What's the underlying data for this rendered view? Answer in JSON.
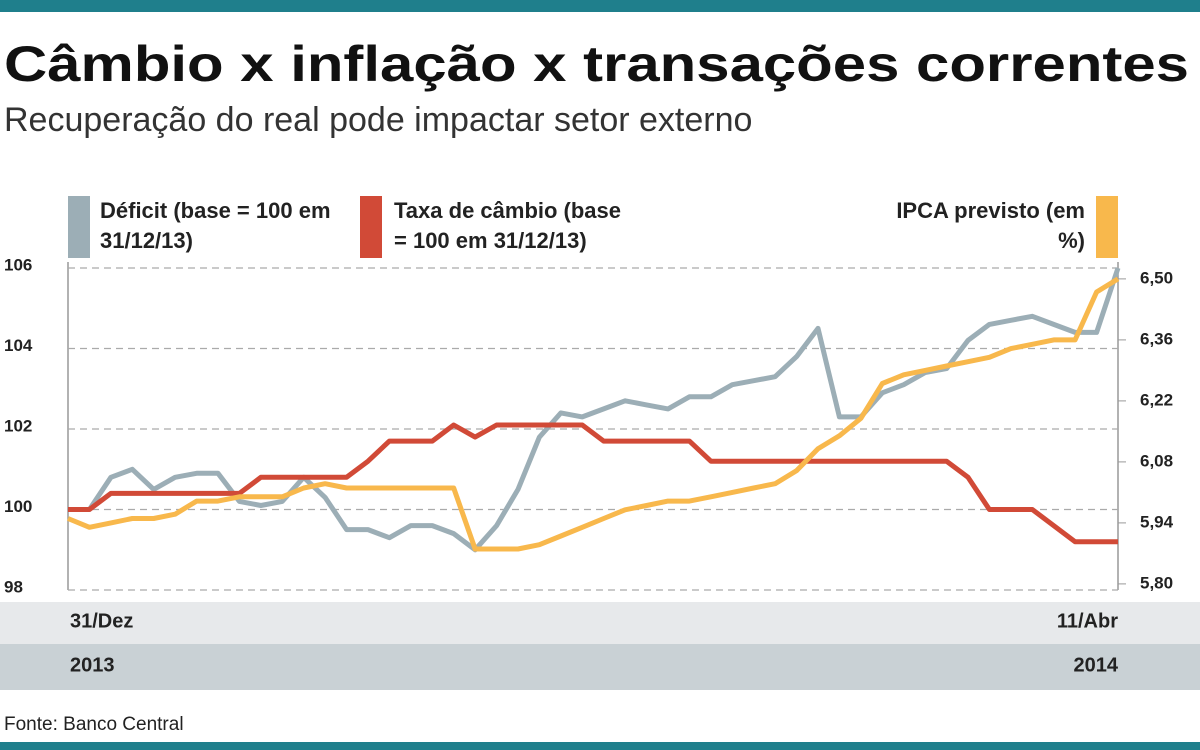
{
  "chart_data": {
    "type": "line",
    "title": "Câmbio x inflação x transações correntes",
    "subtitle": "Recuperação do real pode impactar setor externo",
    "source": "Fonte: Banco Central",
    "categories": [
      "31/Dez",
      null,
      null,
      null,
      null,
      null,
      null,
      null,
      null,
      null,
      null,
      null,
      null,
      null,
      null,
      null,
      null,
      null,
      null,
      null,
      null,
      null,
      null,
      null,
      null,
      null,
      null,
      null,
      null,
      null,
      null,
      null,
      null,
      null,
      null,
      null,
      null,
      null,
      null,
      null,
      null,
      null,
      null,
      null,
      null,
      null,
      null,
      null,
      null,
      "11/Abr"
    ],
    "x_sublabels": [
      "2013",
      "2014"
    ],
    "ylim": [
      98,
      106
    ],
    "yticks": [
      98,
      100,
      102,
      104,
      106
    ],
    "y2lim": [
      5.786,
      6.525
    ],
    "y2ticks": [
      {
        "value": 5.8,
        "label": "5,80"
      },
      {
        "value": 5.94,
        "label": "5,94"
      },
      {
        "value": 6.08,
        "label": "6,08"
      },
      {
        "value": 6.22,
        "label": "6,22"
      },
      {
        "value": 6.36,
        "label": "6,36"
      },
      {
        "value": 6.5,
        "label": "6,50"
      }
    ],
    "grid": true,
    "series": [
      {
        "name": "Déficit (base = 100 em 31/12/13)",
        "color": "#9caeb6",
        "values": [
          100,
          100,
          100.8,
          101.0,
          100.5,
          100.8,
          100.9,
          100.9,
          100.2,
          100.1,
          100.2,
          100.8,
          100.3,
          99.5,
          99.5,
          99.3,
          99.6,
          99.6,
          99.4,
          99.0,
          99.6,
          100.5,
          101.8,
          102.4,
          102.3,
          102.5,
          102.7,
          102.6,
          102.5,
          102.8,
          102.8,
          103.1,
          103.2,
          103.3,
          103.8,
          104.5,
          102.3,
          102.3,
          102.9,
          103.1,
          103.4,
          103.5,
          104.2,
          104.6,
          104.7,
          104.8,
          104.6,
          104.4,
          104.4,
          106.0
        ]
      },
      {
        "name": "Taxa de câmbio (base = 100 em 31/12/13)",
        "color": "#d14a37",
        "values": [
          100,
          100,
          100.4,
          100.4,
          100.4,
          100.4,
          100.4,
          100.4,
          100.4,
          100.8,
          100.8,
          100.8,
          100.8,
          100.8,
          101.2,
          101.7,
          101.7,
          101.7,
          102.1,
          101.8,
          102.1,
          102.1,
          102.1,
          102.1,
          102.1,
          101.7,
          101.7,
          101.7,
          101.7,
          101.7,
          101.2,
          101.2,
          101.2,
          101.2,
          101.2,
          101.2,
          101.2,
          101.2,
          101.2,
          101.2,
          101.2,
          101.2,
          100.8,
          100,
          100,
          100,
          99.6,
          99.2,
          99.2,
          99.2
        ]
      },
      {
        "name": "IPCA previsto (em %)",
        "color": "#f8b84c",
        "axis": "y2",
        "values": [
          5.95,
          5.93,
          5.94,
          5.95,
          5.95,
          5.96,
          5.99,
          5.99,
          6.0,
          6.0,
          6.0,
          6.02,
          6.03,
          6.02,
          6.02,
          6.02,
          6.02,
          6.02,
          6.02,
          5.88,
          5.88,
          5.88,
          5.89,
          5.91,
          5.93,
          5.95,
          5.97,
          5.98,
          5.99,
          5.99,
          6.0,
          6.01,
          6.02,
          6.03,
          6.06,
          6.11,
          6.14,
          6.18,
          6.26,
          6.28,
          6.29,
          6.3,
          6.31,
          6.32,
          6.34,
          6.35,
          6.36,
          6.36,
          6.47,
          6.5
        ]
      }
    ]
  }
}
